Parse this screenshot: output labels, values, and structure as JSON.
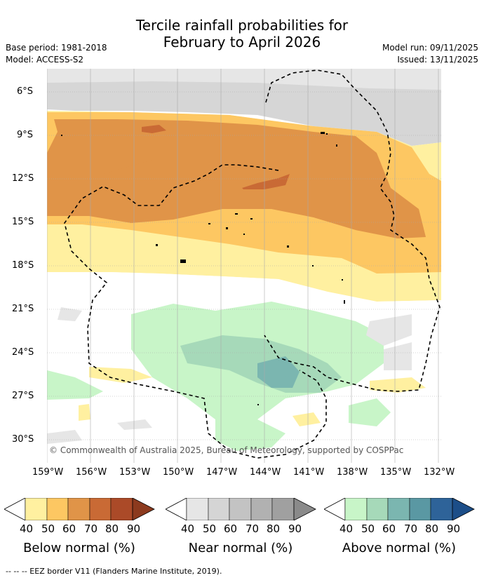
{
  "title": {
    "line1": "Tercile rainfall probabilities for",
    "line2": "February to April 2026"
  },
  "meta": {
    "base_period": "Base period: 1981-2018",
    "model": "Model: ACCESS-S2",
    "model_run": "Model run: 09/11/2025",
    "issued": "Issued: 13/11/2025"
  },
  "lat_labels": [
    "6°S",
    "9°S",
    "12°S",
    "15°S",
    "18°S",
    "21°S",
    "24°S",
    "27°S",
    "30°S"
  ],
  "lon_labels": [
    "159°W",
    "156°W",
    "153°W",
    "150°W",
    "147°W",
    "144°W",
    "141°W",
    "138°W",
    "135°W",
    "132°W"
  ],
  "copyright": "© Commonwealth of Australia 2025, Bureau of Meteorology, supported by COSPPac",
  "colorbars": [
    {
      "title": "Below normal (%)",
      "ticks": [
        "40",
        "50",
        "60",
        "70",
        "80",
        "90"
      ],
      "colors": [
        "#fff0a0",
        "#fdc762",
        "#e09448",
        "#c96a35",
        "#ab4a28",
        "#8c3a1e"
      ]
    },
    {
      "title": "Near normal (%)",
      "ticks": [
        "40",
        "50",
        "60",
        "70",
        "80",
        "90"
      ],
      "colors": [
        "#e6e6e6",
        "#d5d5d5",
        "#c3c3c3",
        "#b1b1b1",
        "#a0a0a0",
        "#8a8a8a"
      ]
    },
    {
      "title": "Above normal (%)",
      "ticks": [
        "40",
        "50",
        "60",
        "70",
        "80",
        "90"
      ],
      "colors": [
        "#c8f5c8",
        "#a6d9b9",
        "#7bb6b0",
        "#5a98a3",
        "#2e6399",
        "#1c4e88"
      ]
    }
  ],
  "footer": "--  --  -- EEZ border V11 (Flanders Marine Institute, 2019)."
}
